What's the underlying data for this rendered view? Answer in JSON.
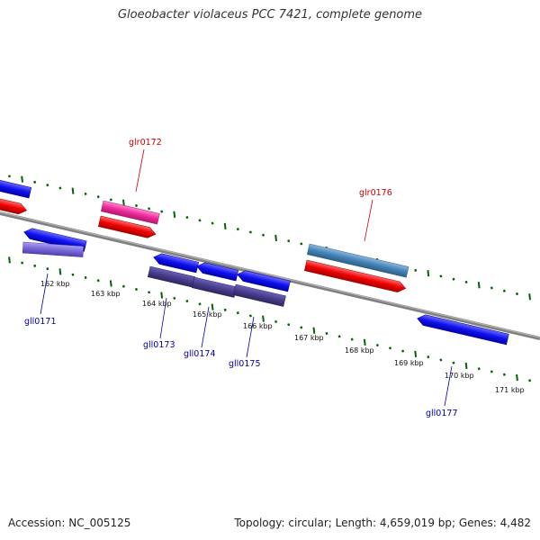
{
  "header": {
    "title": "Gloeobacter violaceus PCC 7421, complete genome"
  },
  "footer": {
    "accession": "Accession: NC_005125",
    "summary": "Topology: circular; Length: 4,659,019 bp; Genes: 4,482"
  },
  "colors": {
    "backbone": "#808080",
    "tick_major": "#006400",
    "tick_minor": "#006400",
    "forward_label": "#cc0000",
    "reverse_label": "#0000aa"
  },
  "ticks": [
    "162 kbp",
    "163 kbp",
    "164 kbp",
    "165 kbp",
    "166 kbp",
    "167 kbp",
    "168 kbp",
    "169 kbp",
    "170 kbp",
    "171 kbp"
  ],
  "forward_labels": [
    "glr0172",
    "glr0176"
  ],
  "reverse_labels": [
    "gll0171",
    "gll0173",
    "gll0174",
    "gll0175",
    "gll0177"
  ]
}
